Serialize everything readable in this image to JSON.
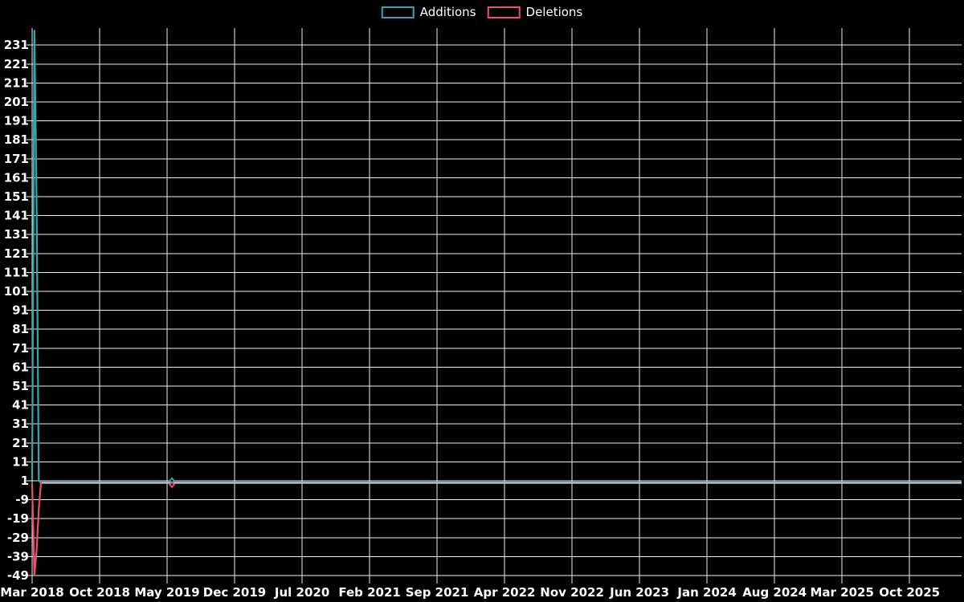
{
  "page": {
    "background": "#000000"
  },
  "chart_data": {
    "type": "line",
    "title": "",
    "legend_position": "top-center",
    "grid": true,
    "series": [
      {
        "name": "Additions",
        "color": "#31a8af",
        "marker": "diamond",
        "points": [
          {
            "m": 0.0,
            "v": 2
          },
          {
            "m": 0.23,
            "v": 239
          },
          {
            "m": 0.46,
            "v": 150
          },
          {
            "m": 0.69,
            "v": 1
          },
          {
            "m": 0.92,
            "v": 0
          },
          {
            "m": 14.2,
            "v": 0
          },
          {
            "m": 14.5,
            "v": 1
          },
          {
            "m": 14.8,
            "v": 0
          },
          {
            "m": 96.4,
            "v": 0
          }
        ]
      },
      {
        "name": "Deletions",
        "color": "#ee4e70",
        "marker": "diamond",
        "points": [
          {
            "m": 0.0,
            "v": -1
          },
          {
            "m": 0.23,
            "v": -49
          },
          {
            "m": 0.46,
            "v": -36
          },
          {
            "m": 0.69,
            "v": -14
          },
          {
            "m": 0.92,
            "v": 0
          },
          {
            "m": 14.2,
            "v": 0
          },
          {
            "m": 14.5,
            "v": -1
          },
          {
            "m": 14.8,
            "v": 0
          },
          {
            "m": 96.4,
            "v": 0
          }
        ]
      }
    ],
    "visible_markers": [
      {
        "series": "Additions",
        "m": 14.5,
        "v": 1
      },
      {
        "series": "Deletions",
        "m": 14.5,
        "v": -1
      }
    ],
    "x_axis": {
      "unit": "months since first tick",
      "range_m": [
        0,
        96.4
      ],
      "ticks": [
        {
          "label": "Mar 2018",
          "m": 0
        },
        {
          "label": "Oct 2018",
          "m": 7
        },
        {
          "label": "May 2019",
          "m": 14
        },
        {
          "label": "Dec 2019",
          "m": 21
        },
        {
          "label": "Jul 2020",
          "m": 28
        },
        {
          "label": "Feb 2021",
          "m": 35
        },
        {
          "label": "Sep 2021",
          "m": 42
        },
        {
          "label": "Apr 2022",
          "m": 49
        },
        {
          "label": "Nov 2022",
          "m": 56
        },
        {
          "label": "Jun 2023",
          "m": 63
        },
        {
          "label": "Jan 2024",
          "m": 70
        },
        {
          "label": "Aug 2024",
          "m": 77
        },
        {
          "label": "Mar 2025",
          "m": 84
        },
        {
          "label": "Oct 2025",
          "m": 91
        }
      ]
    },
    "y_axis": {
      "range": [
        -49,
        240
      ],
      "tick_step": 10,
      "ticks": [
        231,
        221,
        211,
        201,
        191,
        181,
        171,
        161,
        151,
        141,
        131,
        121,
        111,
        101,
        91,
        81,
        71,
        61,
        51,
        41,
        31,
        21,
        11,
        1,
        -9,
        -19,
        -29,
        -39,
        -49
      ]
    },
    "colors": {
      "grid": "#efefef",
      "axis_text": "#ffffff",
      "flat_overlap": "#a9bdc7",
      "additions": "#31a8af",
      "deletions": "#ee4e70"
    }
  }
}
